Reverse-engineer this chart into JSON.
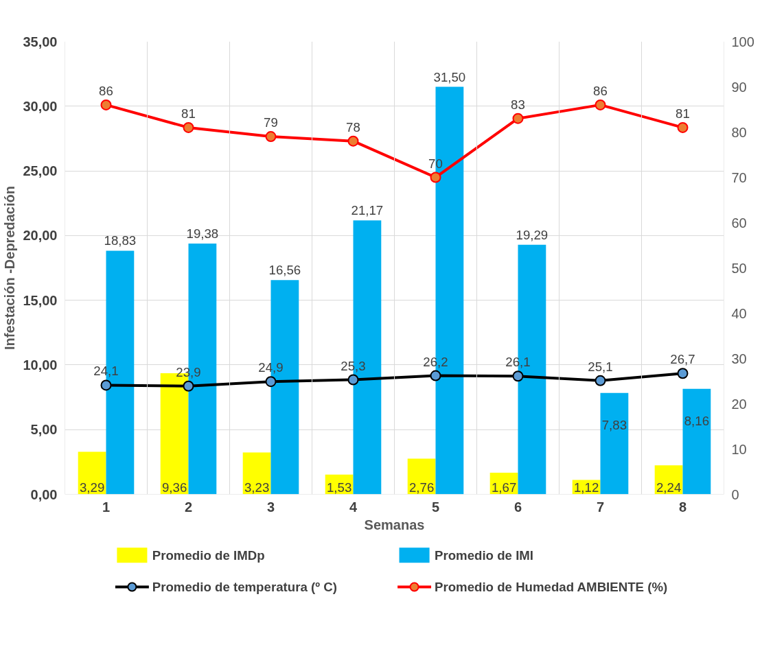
{
  "chart_data": {
    "type": "bar",
    "xlabel": "Semanas",
    "ylabel": "Infestación -Depredación",
    "categories": [
      "1",
      "2",
      "3",
      "4",
      "5",
      "6",
      "7",
      "8"
    ],
    "ylim": [
      0,
      35
    ],
    "yticks": [
      {
        "value": 0,
        "label": "0,00"
      },
      {
        "value": 5,
        "label": "5,00"
      },
      {
        "value": 10,
        "label": "10,00"
      },
      {
        "value": 15,
        "label": "15,00"
      },
      {
        "value": 20,
        "label": "20,00"
      },
      {
        "value": 25,
        "label": "25,00"
      },
      {
        "value": 30,
        "label": "30,00"
      },
      {
        "value": 35,
        "label": "35,00"
      }
    ],
    "y2lim": [
      0,
      100
    ],
    "y2ticks": [
      0,
      10,
      20,
      30,
      40,
      50,
      60,
      70,
      80,
      90,
      100
    ],
    "grid": true,
    "legend": "bottom",
    "series": [
      {
        "name": "Promedio de IMDp",
        "color": "#ffff00",
        "values": [
          3.29,
          9.36,
          3.23,
          1.53,
          2.76,
          1.67,
          1.12,
          2.24
        ],
        "value_labels": [
          "3,29",
          "9,36",
          "3,23",
          "1,53",
          "2,76",
          "1,67",
          "1,12",
          "2,24"
        ]
      },
      {
        "name": "Promedio de IMI",
        "color": "#00b0f0",
        "values": [
          18.83,
          19.38,
          16.56,
          21.17,
          31.5,
          19.29,
          7.83,
          8.16
        ],
        "value_labels": [
          "18,83",
          "19,38",
          "16,56",
          "21,17",
          "31,50",
          "19,29",
          "7,83",
          "8,16"
        ]
      },
      {
        "name": "Promedio de temperatura (º C)",
        "type": "line",
        "axis": "y2",
        "color": "#000000",
        "marker": "circle",
        "values": [
          24.1,
          23.9,
          24.9,
          25.3,
          26.2,
          26.1,
          25.1,
          26.7
        ],
        "value_labels": [
          "24,1",
          "23,9",
          "24,9",
          "25,3",
          "26,2",
          "26,1",
          "25,1",
          "26,7"
        ]
      },
      {
        "name": "Promedio de Humedad AMBIENTE  (%)",
        "type": "line",
        "axis": "y2",
        "color": "#ff0000",
        "marker": "circle",
        "values": [
          86,
          81,
          79,
          78,
          70,
          83,
          86,
          81
        ],
        "value_labels": [
          "86",
          "81",
          "79",
          "78",
          "70",
          "83",
          "86",
          "81"
        ]
      }
    ]
  }
}
